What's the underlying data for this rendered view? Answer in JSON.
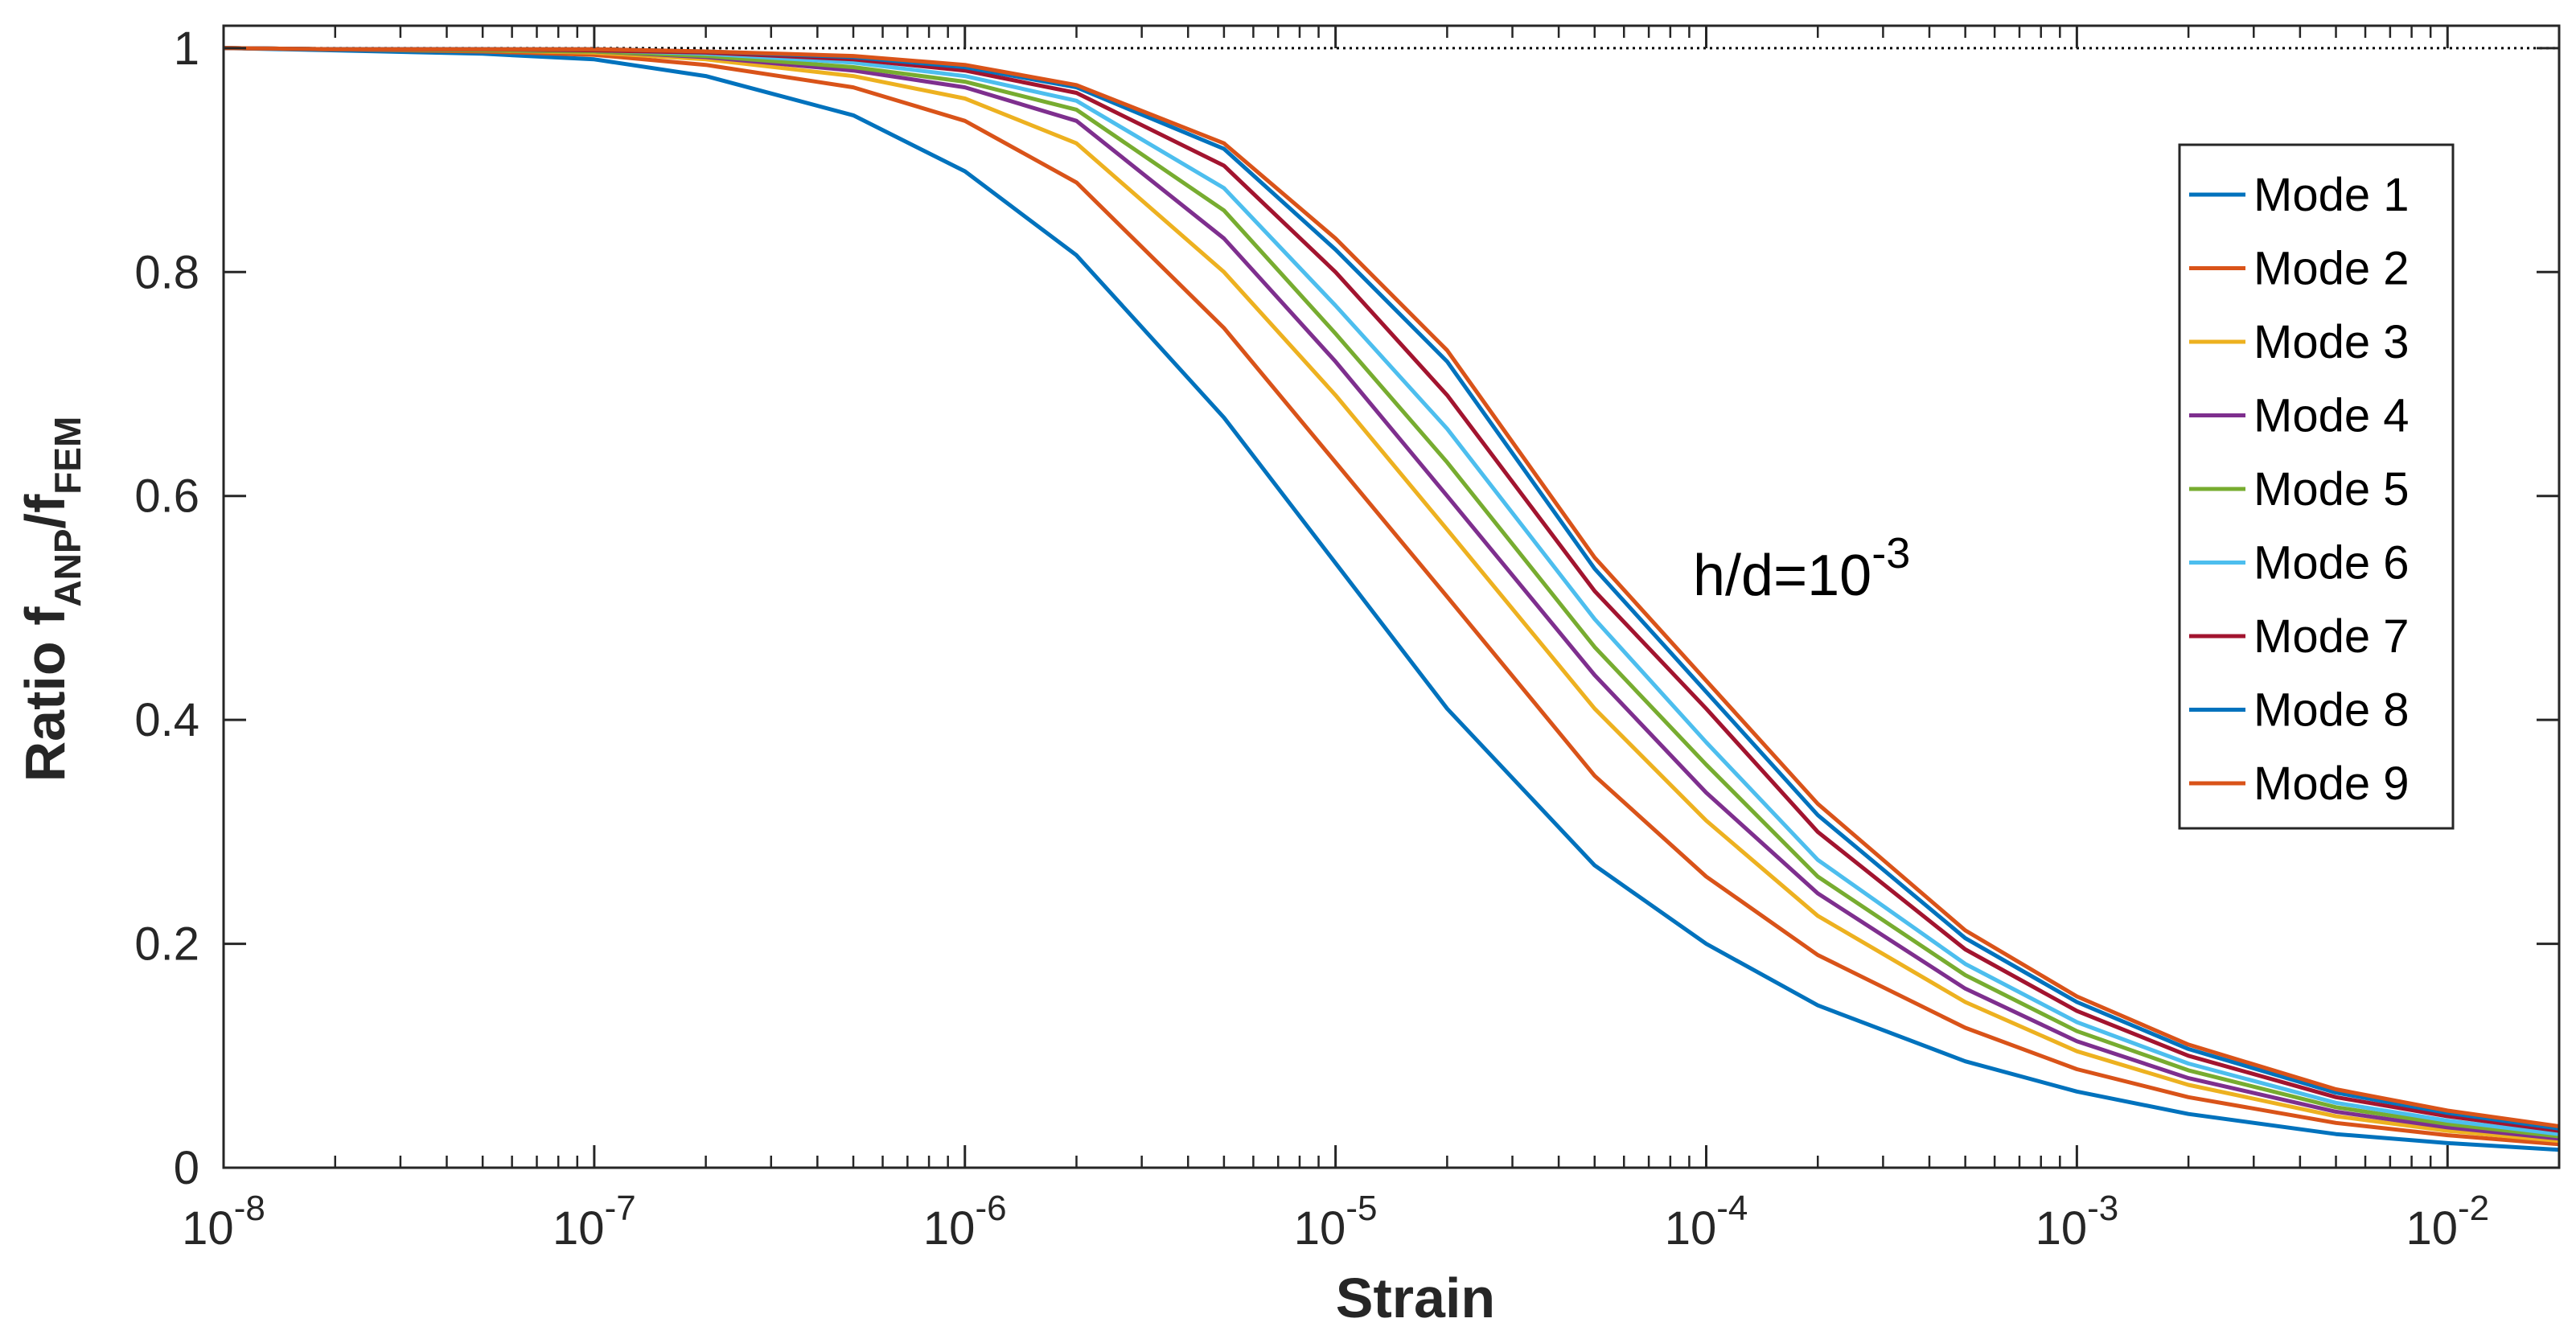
{
  "chart_data": {
    "type": "line",
    "title": "",
    "xlabel": "Strain",
    "ylabel": {
      "prefix": "Ratio f",
      "sub1": "ANP",
      "mid": "/f",
      "sub2": "FEM"
    },
    "xscale": "log",
    "xlim": [
      1e-08,
      0.02
    ],
    "ylim": [
      0,
      1.02
    ],
    "grid": false,
    "x_ticks": [
      {
        "value": 1e-08,
        "base": "10",
        "exp": "-8"
      },
      {
        "value": 1e-07,
        "base": "10",
        "exp": "-7"
      },
      {
        "value": 1e-06,
        "base": "10",
        "exp": "-6"
      },
      {
        "value": 1e-05,
        "base": "10",
        "exp": "-5"
      },
      {
        "value": 0.0001,
        "base": "10",
        "exp": "-4"
      },
      {
        "value": 0.001,
        "base": "10",
        "exp": "-3"
      },
      {
        "value": 0.01,
        "base": "10",
        "exp": "-2"
      }
    ],
    "y_ticks": [
      {
        "value": 0,
        "label": "0"
      },
      {
        "value": 0.2,
        "label": "0.2"
      },
      {
        "value": 0.4,
        "label": "0.4"
      },
      {
        "value": 0.6,
        "label": "0.6"
      },
      {
        "value": 0.8,
        "label": "0.8"
      },
      {
        "value": 1.0,
        "label": "1"
      }
    ],
    "reference_line": {
      "y": 1.0,
      "style": "dotted",
      "color": "#000000"
    },
    "annotation": {
      "base": "h/d=10",
      "exp": "-3"
    },
    "legend": {
      "placement": "upper-right"
    },
    "x": [
      1e-08,
      2e-08,
      5e-08,
      1e-07,
      2e-07,
      5e-07,
      1e-06,
      2e-06,
      5e-06,
      1e-05,
      2e-05,
      5e-05,
      0.0001,
      0.0002,
      0.0005,
      0.001,
      0.002,
      0.005,
      0.01,
      0.02
    ],
    "series": [
      {
        "name": "Mode 1",
        "color": "#0072BD",
        "values": [
          1.0,
          0.998,
          0.995,
          0.99,
          0.975,
          0.94,
          0.89,
          0.815,
          0.67,
          0.54,
          0.41,
          0.27,
          0.2,
          0.145,
          0.095,
          0.068,
          0.048,
          0.03,
          0.022,
          0.016
        ]
      },
      {
        "name": "Mode 2",
        "color": "#D95319",
        "values": [
          1.0,
          0.999,
          0.997,
          0.994,
          0.985,
          0.965,
          0.935,
          0.88,
          0.75,
          0.63,
          0.51,
          0.35,
          0.26,
          0.19,
          0.125,
          0.088,
          0.063,
          0.04,
          0.029,
          0.021
        ]
      },
      {
        "name": "Mode 3",
        "color": "#EDB120",
        "values": [
          1.0,
          0.999,
          0.998,
          0.996,
          0.99,
          0.975,
          0.955,
          0.915,
          0.8,
          0.69,
          0.57,
          0.41,
          0.31,
          0.225,
          0.148,
          0.104,
          0.074,
          0.046,
          0.033,
          0.024
        ]
      },
      {
        "name": "Mode 4",
        "color": "#7E2F8E",
        "values": [
          1.0,
          0.999,
          0.998,
          0.997,
          0.992,
          0.98,
          0.965,
          0.935,
          0.83,
          0.72,
          0.6,
          0.44,
          0.335,
          0.245,
          0.16,
          0.113,
          0.08,
          0.05,
          0.036,
          0.026
        ]
      },
      {
        "name": "Mode 5",
        "color": "#77AC30",
        "values": [
          1.0,
          0.999,
          0.998,
          0.997,
          0.993,
          0.983,
          0.97,
          0.945,
          0.855,
          0.745,
          0.63,
          0.465,
          0.36,
          0.26,
          0.172,
          0.122,
          0.087,
          0.054,
          0.039,
          0.028
        ]
      },
      {
        "name": "Mode 6",
        "color": "#4DBEEE",
        "values": [
          1.0,
          0.999,
          0.999,
          0.998,
          0.995,
          0.987,
          0.975,
          0.953,
          0.875,
          0.77,
          0.66,
          0.49,
          0.38,
          0.275,
          0.182,
          0.13,
          0.093,
          0.058,
          0.042,
          0.03
        ]
      },
      {
        "name": "Mode 7",
        "color": "#A2142F",
        "values": [
          1.0,
          0.999,
          0.999,
          0.998,
          0.996,
          0.99,
          0.98,
          0.96,
          0.895,
          0.8,
          0.69,
          0.515,
          0.41,
          0.3,
          0.195,
          0.14,
          0.1,
          0.063,
          0.046,
          0.033
        ]
      },
      {
        "name": "Mode 8",
        "color": "#0072BD",
        "values": [
          1.0,
          0.999,
          0.999,
          0.999,
          0.997,
          0.992,
          0.983,
          0.965,
          0.91,
          0.82,
          0.72,
          0.535,
          0.425,
          0.315,
          0.205,
          0.148,
          0.106,
          0.067,
          0.049,
          0.035
        ]
      },
      {
        "name": "Mode 9",
        "color": "#D95319",
        "values": [
          1.0,
          0.999,
          0.999,
          0.999,
          0.997,
          0.993,
          0.985,
          0.967,
          0.915,
          0.83,
          0.73,
          0.545,
          0.435,
          0.325,
          0.212,
          0.153,
          0.11,
          0.07,
          0.051,
          0.037
        ]
      }
    ]
  }
}
